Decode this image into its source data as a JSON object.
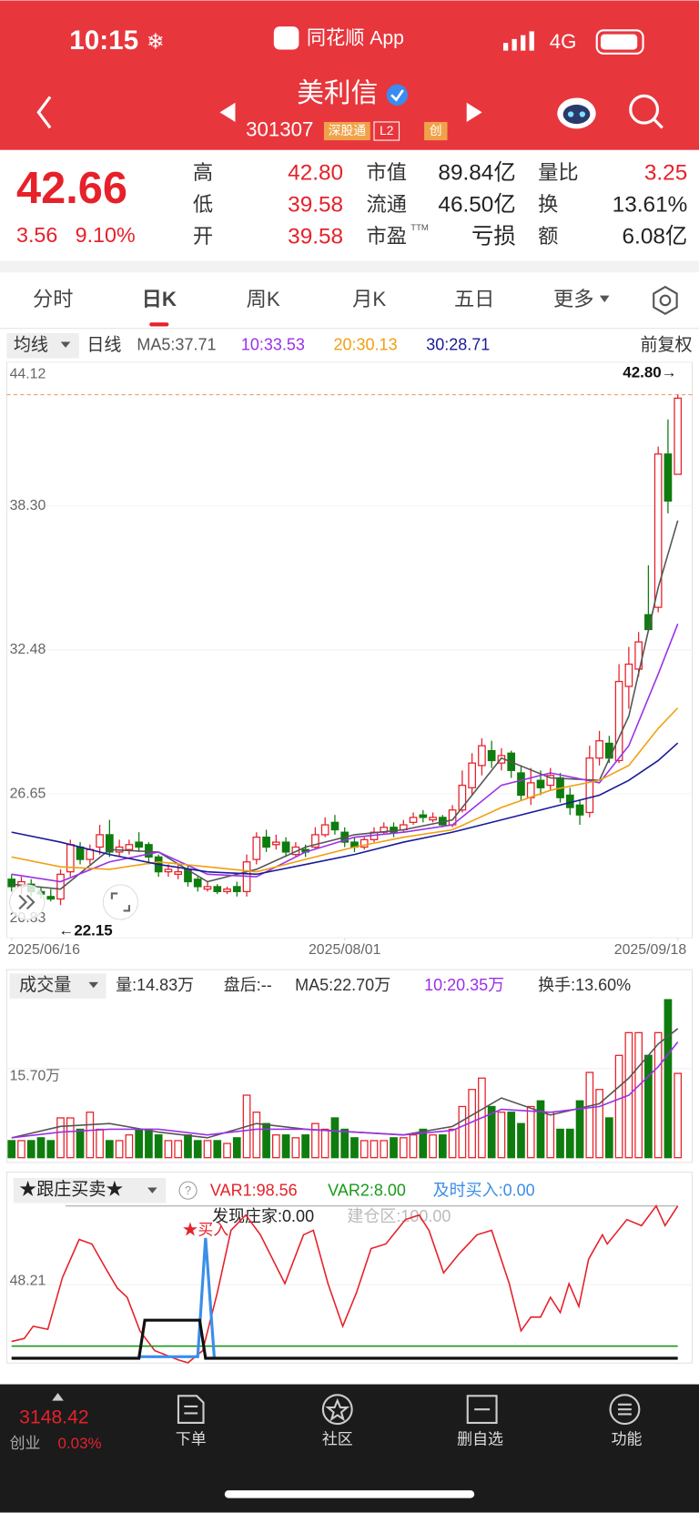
{
  "status_bar": {
    "time": "10:15",
    "app": "同花顺 App",
    "network": "4G"
  },
  "header": {
    "name": "美利信",
    "code": "301307",
    "badges": [
      "深股通",
      "L2",
      "创"
    ]
  },
  "quote": {
    "price": "42.66",
    "change": "3.56",
    "change_pct": "9.10%",
    "fields": [
      [
        {
          "label": "高",
          "value": "42.80"
        },
        {
          "label": "市值",
          "value": "89.84亿"
        },
        {
          "label": "量比",
          "value": "3.25"
        }
      ],
      [
        {
          "label": "低",
          "value": "39.58"
        },
        {
          "label": "流通",
          "value": "46.50亿"
        },
        {
          "label": "换",
          "value": "13.61%"
        }
      ],
      [
        {
          "label": "开",
          "value": "39.58"
        },
        {
          "label": "市盈",
          "sup": "TTM",
          "value": "亏损"
        },
        {
          "label": "额",
          "value": "6.08亿"
        }
      ]
    ]
  },
  "tabs": [
    "分时",
    "日K",
    "周K",
    "月K",
    "五日",
    "更多"
  ],
  "active_tab": 1,
  "kline": {
    "type": "candlestick",
    "indicator": "均线",
    "period": "日线",
    "adjust": "前复权",
    "up_color": "#e6212a",
    "down_color": "#0e7c0e",
    "xlim": [
      0,
      68
    ],
    "xticks": [
      {
        "value": 0,
        "label": "2025/06/16"
      },
      {
        "value": 34,
        "label": "2025/08/01"
      },
      {
        "value": 68,
        "label": "2025/09/18"
      }
    ],
    "ylim": [
      20.83,
      44.12
    ],
    "yticks": [
      44.12,
      {
        "value": 38.3,
        "label": "38.30"
      },
      32.48,
      26.65,
      20.83
    ],
    "high_marker": {
      "x": 68,
      "value": 42.8,
      "label": "42.80→"
    },
    "low_marker": {
      "x": 5,
      "value": 22.15,
      "label": "←22.15"
    },
    "candles": [
      [
        23.2,
        22.9,
        23.4,
        22.7
      ],
      [
        22.9,
        23.1,
        23.3,
        22.6
      ],
      [
        23.0,
        22.7,
        23.2,
        22.5
      ],
      [
        22.7,
        22.6,
        22.9,
        22.4
      ],
      [
        22.5,
        22.4,
        22.8,
        22.3
      ],
      [
        22.4,
        23.4,
        23.6,
        22.15
      ],
      [
        23.5,
        24.6,
        24.8,
        23.3
      ],
      [
        24.5,
        24.0,
        24.7,
        23.8
      ],
      [
        24.0,
        24.4,
        24.6,
        23.8
      ],
      [
        24.5,
        25.0,
        25.4,
        24.2
      ],
      [
        25.0,
        24.3,
        25.6,
        24.1
      ],
      [
        24.3,
        24.5,
        24.8,
        24.1
      ],
      [
        24.4,
        24.6,
        24.8,
        24.2
      ],
      [
        24.7,
        24.5,
        25.1,
        24.3
      ],
      [
        24.6,
        24.1,
        24.7,
        23.8
      ],
      [
        24.1,
        23.5,
        24.2,
        23.3
      ],
      [
        23.5,
        23.6,
        23.8,
        23.3
      ],
      [
        23.4,
        23.5,
        23.8,
        23.2
      ],
      [
        23.6,
        23.1,
        23.8,
        22.9
      ],
      [
        23.2,
        22.9,
        23.3,
        22.7
      ],
      [
        22.8,
        22.9,
        23.1,
        22.7
      ],
      [
        22.9,
        22.7,
        23.0,
        22.6
      ],
      [
        22.7,
        22.8,
        22.9,
        22.6
      ],
      [
        22.9,
        22.7,
        23.1,
        22.5
      ],
      [
        22.7,
        23.9,
        24.2,
        22.5
      ],
      [
        24.0,
        24.9,
        25.1,
        23.8
      ],
      [
        24.9,
        24.5,
        25.2,
        24.3
      ],
      [
        24.6,
        24.7,
        25.0,
        24.4
      ],
      [
        24.7,
        24.3,
        24.9,
        24.1
      ],
      [
        24.2,
        24.5,
        24.7,
        24.1
      ],
      [
        24.4,
        24.3,
        24.6,
        24.1
      ],
      [
        24.5,
        25.0,
        25.3,
        24.4
      ],
      [
        25.0,
        25.4,
        25.7,
        24.9
      ],
      [
        25.5,
        25.2,
        25.8,
        25.0
      ],
      [
        25.1,
        24.7,
        25.3,
        24.5
      ],
      [
        24.7,
        24.5,
        24.9,
        24.3
      ],
      [
        24.5,
        24.8,
        24.9,
        24.4
      ],
      [
        24.8,
        25.1,
        25.3,
        24.7
      ],
      [
        25.1,
        25.3,
        25.5,
        25.0
      ],
      [
        25.3,
        25.1,
        25.5,
        24.9
      ],
      [
        25.2,
        25.4,
        25.6,
        25.1
      ],
      [
        25.5,
        25.7,
        25.9,
        25.4
      ],
      [
        25.8,
        25.7,
        26.0,
        25.5
      ],
      [
        25.6,
        25.7,
        25.9,
        25.5
      ],
      [
        25.7,
        25.4,
        25.8,
        25.3
      ],
      [
        25.4,
        26.0,
        26.2,
        25.3
      ],
      [
        26.0,
        27.0,
        27.6,
        25.9
      ],
      [
        26.9,
        27.9,
        28.3,
        26.6
      ],
      [
        27.8,
        28.6,
        28.9,
        27.4
      ],
      [
        28.4,
        28.0,
        28.8,
        27.7
      ],
      [
        27.9,
        28.2,
        28.5,
        27.6
      ],
      [
        28.3,
        27.6,
        28.4,
        27.3
      ],
      [
        27.5,
        26.6,
        27.8,
        26.4
      ],
      [
        26.5,
        27.1,
        27.7,
        26.2
      ],
      [
        27.2,
        26.9,
        27.6,
        26.6
      ],
      [
        27.0,
        27.4,
        27.7,
        26.8
      ],
      [
        27.3,
        26.5,
        27.5,
        26.3
      ],
      [
        26.6,
        26.1,
        26.9,
        25.8
      ],
      [
        26.2,
        25.8,
        26.4,
        25.4
      ],
      [
        25.9,
        28.1,
        28.6,
        25.7
      ],
      [
        28.1,
        28.8,
        29.2,
        27.8
      ],
      [
        28.7,
        28.1,
        29.0,
        27.9
      ],
      [
        28.0,
        31.2,
        31.9,
        27.9
      ],
      [
        31.0,
        31.9,
        32.6,
        30.1
      ],
      [
        31.7,
        32.8,
        33.2,
        31.4
      ],
      [
        33.9,
        33.3,
        35.9,
        33.2
      ],
      [
        34.2,
        40.4,
        40.7,
        34.0
      ],
      [
        40.4,
        38.5,
        41.8,
        38.0
      ],
      [
        39.58,
        42.66,
        42.8,
        39.58
      ]
    ],
    "ma": [
      {
        "label": "MA5:37.71",
        "color": "#555555",
        "x": [
          0,
          5,
          10,
          15,
          20,
          25,
          30,
          35,
          40,
          45,
          50,
          55,
          60,
          63,
          66,
          68
        ],
        "values": [
          23.0,
          22.8,
          24.4,
          24.3,
          23.1,
          23.6,
          24.5,
          25.0,
          25.2,
          25.6,
          28.1,
          27.3,
          27.2,
          29.8,
          35.0,
          37.71
        ]
      },
      {
        "label": "10:33.53",
        "color": "#9b30e8",
        "x": [
          0,
          5,
          10,
          15,
          20,
          25,
          30,
          35,
          40,
          45,
          50,
          55,
          60,
          63,
          66,
          68
        ],
        "values": [
          23.4,
          23.1,
          23.9,
          24.3,
          23.4,
          23.3,
          24.3,
          24.9,
          25.1,
          25.4,
          27.0,
          27.5,
          27.1,
          28.6,
          31.5,
          33.53
        ]
      },
      {
        "label": "20:30.13",
        "color": "#f0a010",
        "x": [
          0,
          5,
          10,
          15,
          20,
          25,
          30,
          35,
          40,
          45,
          50,
          55,
          60,
          63,
          66,
          68
        ],
        "values": [
          24.1,
          23.7,
          23.6,
          23.9,
          23.7,
          23.5,
          24.0,
          24.5,
          24.9,
          25.2,
          26.1,
          26.8,
          27.2,
          27.8,
          29.3,
          30.13
        ]
      },
      {
        "label": "30:28.71",
        "color": "#1a1a9a",
        "x": [
          0,
          5,
          10,
          15,
          20,
          25,
          30,
          35,
          40,
          45,
          50,
          55,
          60,
          63,
          66,
          68
        ],
        "values": [
          25.1,
          24.7,
          24.2,
          23.8,
          23.5,
          23.4,
          23.8,
          24.2,
          24.7,
          25.1,
          25.6,
          26.1,
          26.6,
          27.2,
          28.0,
          28.71
        ]
      }
    ]
  },
  "volume": {
    "type": "bar",
    "indicator": "成交量",
    "legend": [
      {
        "label": "量:14.83万",
        "color": "#333333"
      },
      {
        "label": "盘后:--",
        "color": "#333333"
      },
      {
        "label": "MA5:22.70万",
        "color": "#333333"
      },
      {
        "label": "10:20.35万",
        "color": "#9b30e8"
      },
      {
        "label": "换手:13.60%",
        "color": "#333333"
      }
    ],
    "ylim": [
      0,
      28
    ],
    "yticks": [
      {
        "value": 15.7,
        "label": "15.70万"
      }
    ],
    "values": [
      3,
      3,
      3,
      3.5,
      3,
      7,
      7,
      5,
      8,
      5,
      3,
      3,
      4,
      5,
      5,
      4,
      3,
      3,
      4,
      3,
      3,
      3,
      2.5,
      3.5,
      11,
      8,
      6,
      4,
      4,
      3.5,
      4,
      6,
      5,
      7,
      5,
      3.5,
      3,
      3,
      3,
      3.5,
      3.5,
      4,
      5,
      4,
      4,
      5,
      9,
      12,
      14,
      9,
      8,
      8,
      6,
      9,
      10,
      8,
      5,
      5,
      10,
      15,
      12,
      7,
      18,
      22,
      22,
      18,
      22,
      27.8,
      14.83
    ],
    "ma": [
      {
        "color": "#555555",
        "x": [
          0,
          5,
          10,
          15,
          20,
          25,
          30,
          35,
          40,
          45,
          50,
          55,
          60,
          63,
          66,
          68
        ],
        "values": [
          3.5,
          5.5,
          6,
          4.5,
          3.5,
          6,
          5,
          4.5,
          4,
          5.5,
          10.5,
          7.5,
          9.5,
          14,
          20,
          22.7
        ]
      },
      {
        "color": "#9b30e8",
        "x": [
          0,
          5,
          10,
          15,
          20,
          25,
          30,
          35,
          40,
          45,
          50,
          55,
          60,
          63,
          66,
          68
        ],
        "values": [
          3.5,
          4.5,
          5,
          5,
          4,
          5,
          5,
          4.5,
          4,
          4.8,
          8.5,
          8,
          9,
          11,
          16,
          20.35
        ]
      }
    ]
  },
  "indicator": {
    "type": "line",
    "name": "★跟庄买卖★",
    "legend": [
      {
        "label": "VAR1:98.56",
        "color": "#e6212a"
      },
      {
        "label": "VAR2:8.00",
        "color": "#1a9a1a"
      },
      {
        "label": "及时买入:0.00",
        "color": "#3b8ee8"
      },
      {
        "label": "发现庄家:0.00",
        "color": "#222222"
      },
      {
        "label": "建仓区:100.00",
        "color": "#bbbbbb"
      }
    ],
    "xlim": [
      0,
      68
    ],
    "ylim": [
      0,
      100
    ],
    "yticks": [
      48.21
    ],
    "series": [
      {
        "color": "#bbbbbb",
        "x": [
          5.5,
          68
        ],
        "values": [
          100,
          100
        ]
      },
      {
        "color": "#e6212a",
        "x": [
          0,
          1.3,
          2.2,
          3.7,
          5.2,
          6.9,
          8.2,
          9.6,
          10.8,
          11.8,
          13.1,
          14.6,
          17,
          18,
          19.5,
          21,
          22.4,
          23.9,
          25.4,
          27.9,
          29.8,
          30.8,
          32.3,
          33.8,
          35.2,
          36.7,
          38.2,
          40.2,
          41.6,
          42.6,
          44.1,
          45.6,
          47.5,
          49,
          50.8,
          52,
          53,
          54,
          55,
          56,
          56.9,
          57.9,
          58.9,
          60.3,
          60.8,
          62.8,
          64.3,
          65.8,
          66.7,
          68
        ],
        "values": [
          11,
          13,
          21,
          19,
          53,
          78,
          75,
          59,
          46,
          40,
          18,
          5,
          -1,
          -3,
          5,
          43,
          84,
          94,
          81,
          49,
          81,
          84,
          49,
          21,
          43,
          72,
          75,
          91,
          94,
          84,
          56,
          68,
          81,
          84,
          49,
          18,
          27,
          27,
          40,
          30,
          49,
          34,
          65,
          81,
          75,
          91,
          87,
          100,
          87,
          100
        ]
      },
      {
        "color": "#1a9a1a",
        "x": [
          0,
          68
        ],
        "values": [
          8,
          8
        ]
      },
      {
        "color": "#3b8ee8",
        "x": [
          13,
          19,
          19.8,
          20.7
        ],
        "values": [
          1,
          1,
          79,
          0
        ]
      },
      {
        "color": "#111111",
        "x": [
          0,
          13,
          13.6,
          19.2,
          19.8,
          68
        ],
        "values": [
          0,
          0,
          25,
          25,
          0,
          0
        ]
      }
    ],
    "annotation": {
      "label": "★买入",
      "x": 19.8,
      "value": 78
    }
  },
  "bottom_bar": {
    "index_value": "3148.42",
    "index_name": "创业",
    "index_change": "0.03%",
    "items": [
      "下单",
      "社区",
      "删自选",
      "功能"
    ]
  }
}
